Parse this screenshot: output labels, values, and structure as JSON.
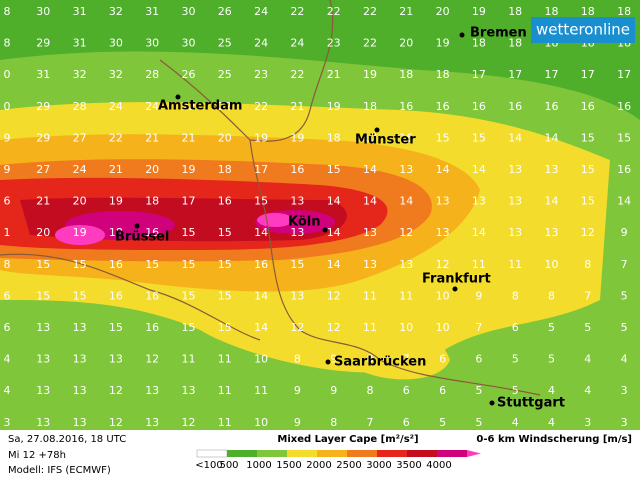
{
  "logo": "wetteronline",
  "footer": {
    "date": "Sa, 27.08.2016, 18 UTC",
    "run": "Mi 12 +78h",
    "model": "Modell: IFS (ECMWF)"
  },
  "shear_title": "0-6 km Windscherung [m/s]",
  "legend": {
    "title": "Mixed Layer Cape [m²/s²]",
    "items": [
      {
        "label": "<100",
        "color": "#ffffff"
      },
      {
        "label": "500",
        "color": "#4fae2a"
      },
      {
        "label": "1000",
        "color": "#7fc63a"
      },
      {
        "label": "1500",
        "color": "#f3dc2c"
      },
      {
        "label": "2000",
        "color": "#f5b21a"
      },
      {
        "label": "2500",
        "color": "#f07a1e"
      },
      {
        "label": "3000",
        "color": "#e5261b"
      },
      {
        "label": "3500",
        "color": "#c30c20"
      },
      {
        "label": "4000",
        "color": "#d1007b"
      }
    ]
  },
  "cities": [
    "Bremen",
    "Amsterdam",
    "Münster",
    "Köln",
    "Brüssel",
    "Frankfurt",
    "Saarbrücken",
    "Stuttgart"
  ],
  "grid": {
    "rows": [
      [
        8,
        30,
        31,
        32,
        31,
        30,
        26,
        24,
        22,
        22,
        22,
        21,
        20,
        19,
        18,
        18,
        18,
        18
      ],
      [
        8,
        29,
        31,
        30,
        30,
        30,
        25,
        24,
        24,
        23,
        22,
        20,
        19,
        18,
        18,
        18,
        18,
        18
      ],
      [
        0,
        31,
        32,
        32,
        28,
        26,
        25,
        23,
        22,
        21,
        19,
        18,
        18,
        17,
        17,
        17,
        17,
        17
      ],
      [
        0,
        29,
        28,
        24,
        24,
        22,
        22,
        22,
        21,
        19,
        18,
        16,
        16,
        16,
        16,
        16,
        16,
        16
      ],
      [
        9,
        29,
        27,
        22,
        21,
        21,
        20,
        19,
        19,
        18,
        17,
        16,
        15,
        15,
        14,
        14,
        15,
        15
      ],
      [
        9,
        27,
        24,
        21,
        20,
        19,
        18,
        17,
        16,
        15,
        14,
        13,
        14,
        14,
        13,
        13,
        15,
        16
      ],
      [
        6,
        21,
        20,
        19,
        18,
        17,
        16,
        15,
        13,
        14,
        14,
        14,
        13,
        13,
        13,
        14,
        15,
        14
      ],
      [
        1,
        20,
        19,
        18,
        16,
        15,
        15,
        14,
        13,
        14,
        13,
        12,
        13,
        14,
        13,
        13,
        12,
        9
      ],
      [
        8,
        15,
        15,
        16,
        15,
        15,
        15,
        16,
        15,
        14,
        13,
        13,
        12,
        11,
        11,
        10,
        8,
        7
      ],
      [
        6,
        15,
        15,
        16,
        16,
        15,
        15,
        14,
        13,
        12,
        11,
        11,
        10,
        9,
        8,
        8,
        7,
        5
      ],
      [
        6,
        13,
        13,
        15,
        16,
        15,
        15,
        14,
        12,
        12,
        11,
        10,
        10,
        7,
        6,
        5,
        5,
        5
      ],
      [
        4,
        13,
        13,
        13,
        12,
        11,
        11,
        10,
        8,
        9,
        8,
        7,
        6,
        6,
        5,
        5,
        4,
        4
      ],
      [
        4,
        13,
        13,
        12,
        13,
        13,
        11,
        11,
        9,
        9,
        8,
        6,
        6,
        5,
        5,
        4,
        4,
        3
      ],
      [
        3,
        13,
        13,
        12,
        13,
        12,
        11,
        10,
        9,
        8,
        7,
        6,
        5,
        5,
        4,
        4,
        3,
        3
      ]
    ]
  }
}
